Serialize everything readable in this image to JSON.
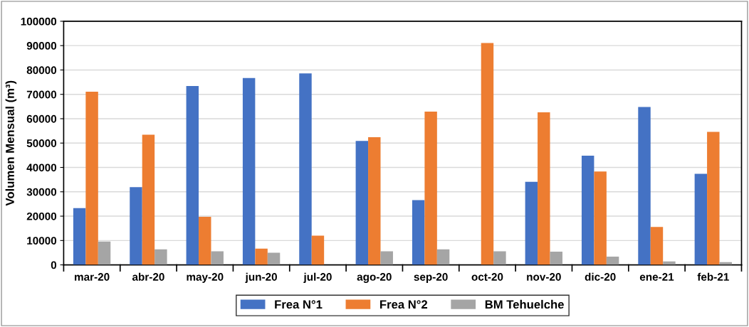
{
  "chart_data": {
    "type": "bar",
    "ylabel": "Volumen Mensual (m³)",
    "categories": [
      "mar-20",
      "abr-20",
      "may-20",
      "jun-20",
      "jul-20",
      "ago-20",
      "sep-20",
      "oct-20",
      "nov-20",
      "dic-20",
      "ene-21",
      "feb-21"
    ],
    "series": [
      {
        "name": "Frea N°1",
        "color": "#4472c4",
        "values": [
          23300,
          31900,
          73400,
          76700,
          78600,
          50900,
          26600,
          0,
          34100,
          44800,
          64800,
          37400
        ]
      },
      {
        "name": "Frea N°2",
        "color": "#ed7d31",
        "values": [
          71100,
          53400,
          19700,
          6700,
          12000,
          52400,
          62900,
          91100,
          62600,
          38300,
          15600,
          54600
        ]
      },
      {
        "name": "BM Tehuelche",
        "color": "#a5a5a5",
        "values": [
          9600,
          6400,
          5600,
          5000,
          null,
          5600,
          6400,
          5600,
          5400,
          3400,
          1400,
          1100
        ]
      }
    ],
    "ylim": [
      0,
      100000
    ],
    "yticks": [
      0,
      10000,
      20000,
      30000,
      40000,
      50000,
      60000,
      70000,
      80000,
      90000,
      100000
    ],
    "grid": "y",
    "legend": "bottom"
  }
}
